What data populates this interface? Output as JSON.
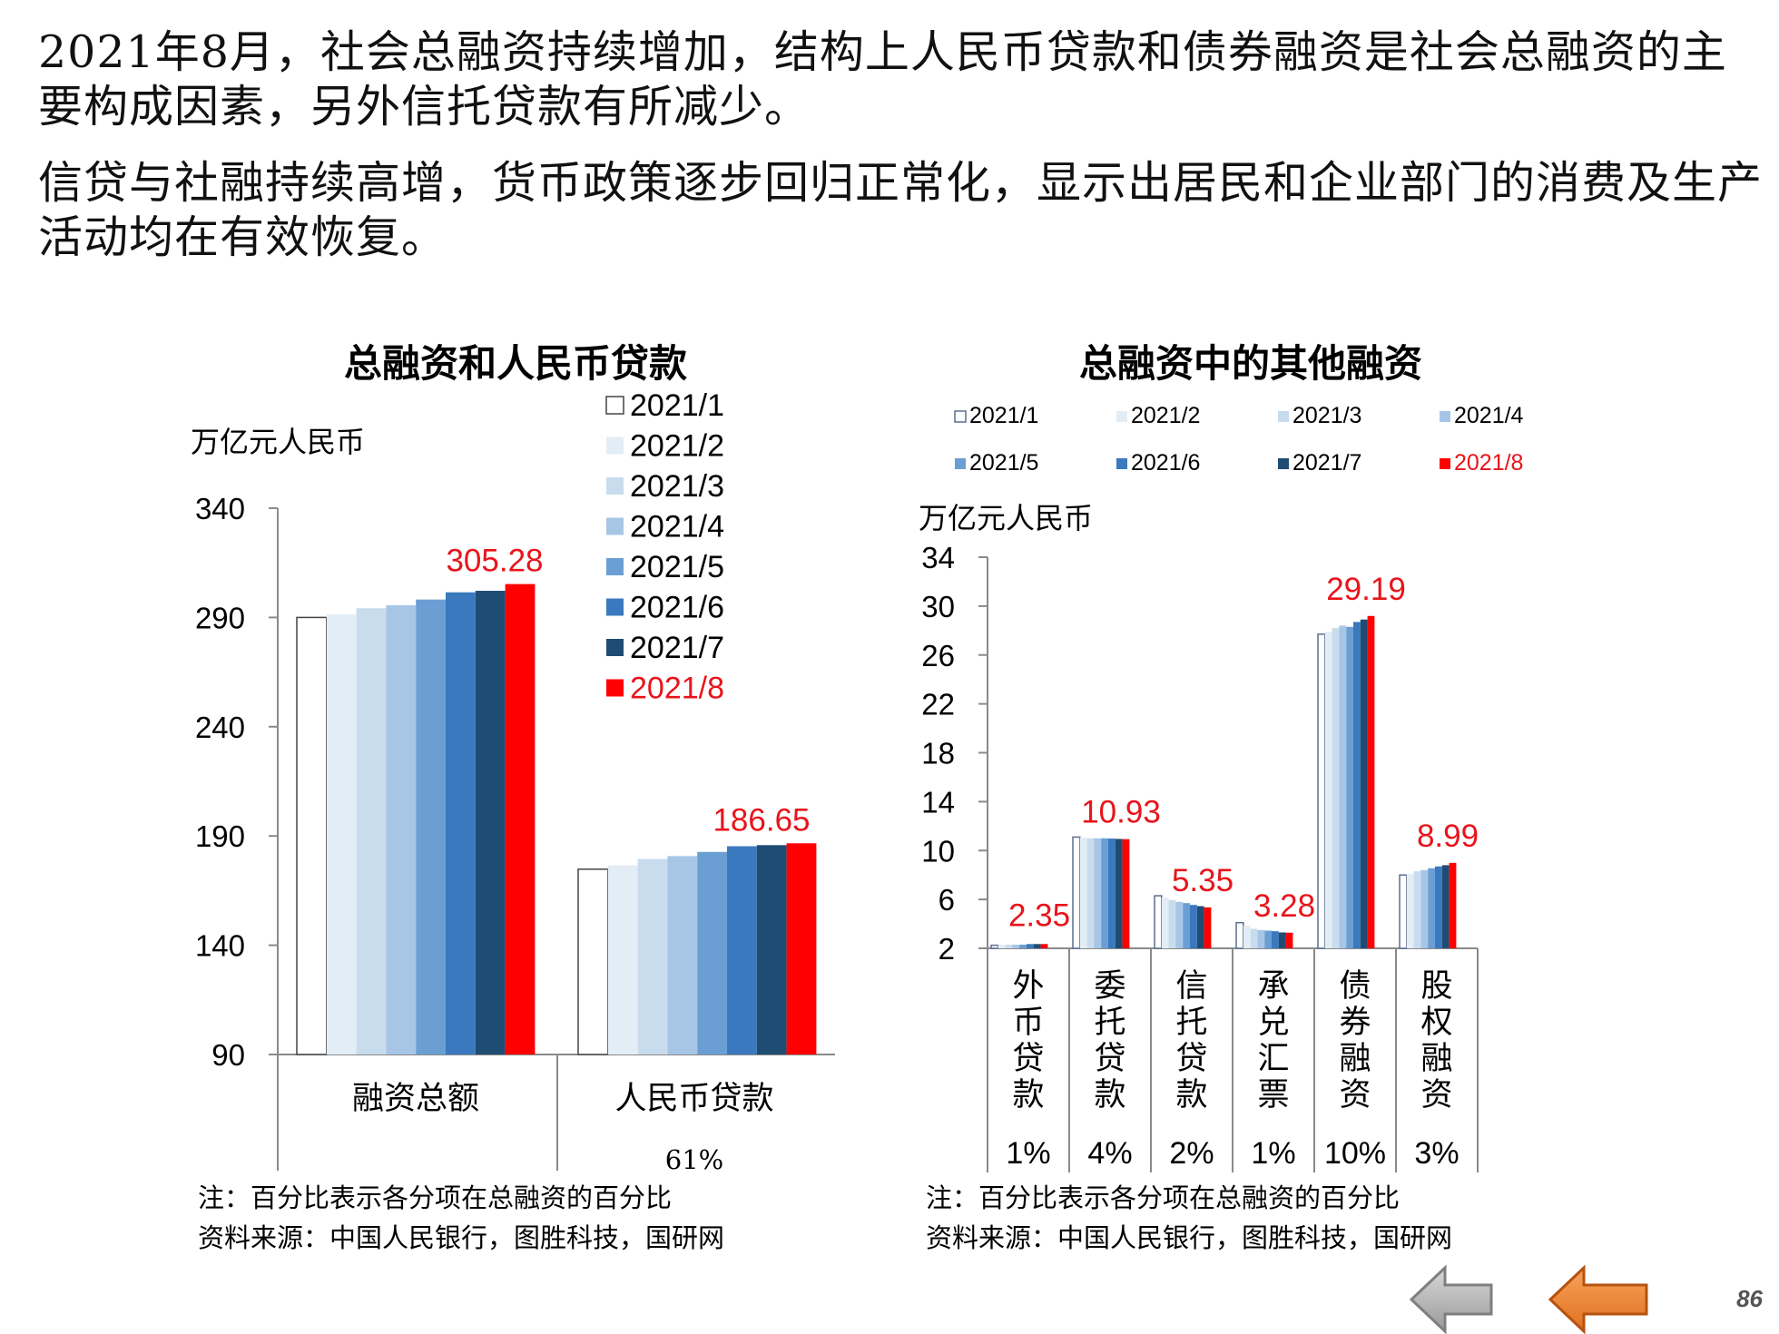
{
  "text": {
    "p1": "2021年8月，社会总融资持续增加，结构上人民币贷款和债券融资是社会总融资的主要构成因素，另外信托贷款有所减少。",
    "p2": "信贷与社融持续高增，货币政策逐步回归正常化，显示出居民和企业部门的消费及生产活动均在有效恢复。"
  },
  "colors": {
    "series": [
      "#ffffff",
      "#e3edf5",
      "#c8dcee",
      "#a7c6e6",
      "#6b9fd4",
      "#3a79be",
      "#1f4c73",
      "#ff0000"
    ],
    "outline_first": "#5a6f8f",
    "highlight_label": "#e8141b"
  },
  "footer": {
    "page_number": "86"
  },
  "nav": {
    "prev": "gray-left-arrow-icon",
    "next": "orange-left-arrow-icon"
  },
  "chart_data": [
    {
      "type": "bar",
      "title": "总融资和人民币贷款",
      "ylabel": "万亿元人民币",
      "ylim": [
        90,
        340
      ],
      "yticks": [
        90,
        140,
        190,
        240,
        290,
        340
      ],
      "categories": [
        "融资总额",
        "人民币贷款"
      ],
      "category_notes": [
        "",
        "61%"
      ],
      "series": [
        {
          "name": "2021/1",
          "values": [
            290.0,
            174.8
          ]
        },
        {
          "name": "2021/2",
          "values": [
            291.5,
            176.6
          ]
        },
        {
          "name": "2021/3",
          "values": [
            294.2,
            179.5
          ]
        },
        {
          "name": "2021/4",
          "values": [
            295.6,
            180.8
          ]
        },
        {
          "name": "2021/5",
          "values": [
            298.2,
            182.7
          ]
        },
        {
          "name": "2021/6",
          "values": [
            301.5,
            185.3
          ]
        },
        {
          "name": "2021/7",
          "values": [
            302.2,
            185.8
          ]
        },
        {
          "name": "2021/8",
          "values": [
            305.28,
            186.65
          ]
        }
      ],
      "data_labels": [
        "305.28",
        "186.65"
      ],
      "legend_position": "top-right",
      "grid": false,
      "note": "注：百分比表示各分项在总融资的百分比",
      "source": "资料来源：中国人民银行，图胜科技，国研网"
    },
    {
      "type": "bar",
      "title": "总融资中的其他融资",
      "ylabel": "万亿元人民币",
      "ylim": [
        2,
        34
      ],
      "yticks": [
        2,
        6,
        10,
        14,
        18,
        22,
        26,
        30,
        34
      ],
      "categories": [
        "外币贷款",
        "委托贷款",
        "信托贷款",
        "承兑汇票",
        "债券融资",
        "股权融资"
      ],
      "category_shares": [
        "1%",
        "4%",
        "2%",
        "1%",
        "10%",
        "3%"
      ],
      "series": [
        {
          "name": "2021/1",
          "values": [
            2.25,
            11.1,
            6.3,
            4.1,
            27.7,
            8.0
          ]
        },
        {
          "name": "2021/2",
          "values": [
            2.3,
            11.05,
            6.15,
            3.85,
            27.9,
            8.1
          ]
        },
        {
          "name": "2021/3",
          "values": [
            2.3,
            11.0,
            5.95,
            3.6,
            28.2,
            8.3
          ]
        },
        {
          "name": "2021/4",
          "values": [
            2.3,
            11.0,
            5.8,
            3.5,
            28.4,
            8.4
          ]
        },
        {
          "name": "2021/5",
          "values": [
            2.3,
            11.0,
            5.7,
            3.45,
            28.3,
            8.55
          ]
        },
        {
          "name": "2021/6",
          "values": [
            2.35,
            10.98,
            5.55,
            3.4,
            28.7,
            8.7
          ]
        },
        {
          "name": "2021/7",
          "values": [
            2.35,
            10.95,
            5.45,
            3.3,
            28.9,
            8.8
          ]
        },
        {
          "name": "2021/8",
          "values": [
            2.35,
            10.93,
            5.35,
            3.28,
            29.19,
            8.99
          ]
        }
      ],
      "data_labels": [
        "2.35",
        "10.93",
        "5.35",
        "3.28",
        "29.19",
        "8.99"
      ],
      "legend_position": "top",
      "grid": false,
      "note": "注：百分比表示各分项在总融资的百分比",
      "source": "资料来源：中国人民银行，图胜科技，国研网"
    }
  ]
}
